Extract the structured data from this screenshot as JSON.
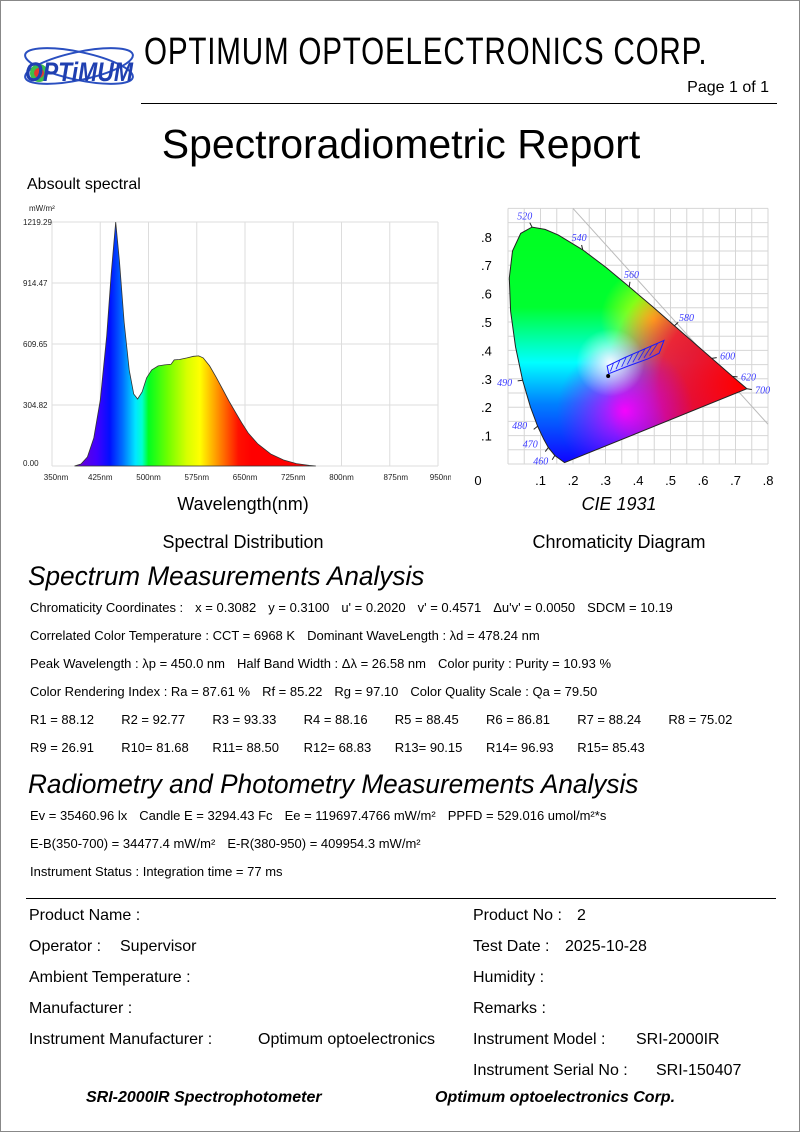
{
  "header": {
    "logo_text": "OPTiMUM",
    "company": "OPTIMUM  OPTOELECTRONICS  CORP.",
    "page": "Page 1 of 1",
    "title": "Spectroradiometric Report"
  },
  "spectrum": {
    "section_label": "Absoult spectral",
    "unit": "mW/m²",
    "xlabel": "Wavelength(nm)",
    "caption": "Spectral Distribution"
  },
  "cie": {
    "title": "CIE 1931",
    "caption": "Chromaticity Diagram"
  },
  "chart_data": [
    {
      "type": "area",
      "title": "Absoult spectral",
      "xlabel": "Wavelength(nm)",
      "ylabel": "mW/m²",
      "x_ticks": [
        "350nm",
        "425nm",
        "500nm",
        "575nm",
        "650nm",
        "725nm",
        "800nm",
        "875nm",
        "950nm"
      ],
      "y_ticks": [
        "0.00",
        "304.82",
        "609.65",
        "914.47",
        "1219.29"
      ],
      "xlim": [
        350,
        950
      ],
      "ylim": [
        0,
        1219.29
      ],
      "grid": true,
      "x": [
        385,
        395,
        405,
        415,
        425,
        435,
        442,
        449,
        455,
        462,
        470,
        477,
        483,
        490,
        497,
        505,
        515,
        525,
        535,
        540,
        548,
        560,
        570,
        578,
        585,
        595,
        605,
        615,
        625,
        635,
        645,
        655,
        670,
        690,
        710,
        730,
        750,
        760
      ],
      "y": [
        0,
        10,
        45,
        140,
        330,
        650,
        960,
        1219,
        1020,
        720,
        480,
        360,
        335,
        370,
        440,
        480,
        500,
        505,
        508,
        530,
        532,
        540,
        548,
        550,
        540,
        500,
        445,
        385,
        325,
        270,
        215,
        165,
        110,
        60,
        30,
        12,
        3,
        0
      ]
    },
    {
      "type": "scatter",
      "title": "CIE 1931",
      "xlim": [
        0,
        0.8
      ],
      "ylim": [
        0,
        0.85
      ],
      "x_ticks": [
        "0",
        ".1",
        ".2",
        ".3",
        ".4",
        ".5",
        ".6",
        ".7",
        ".8"
      ],
      "y_ticks": [
        ".1",
        ".2",
        ".3",
        ".4",
        ".5",
        ".6",
        ".7",
        ".8"
      ],
      "wavelength_labels": [
        {
          "nm": "460",
          "x": 0.144,
          "y": 0.03
        },
        {
          "nm": "470",
          "x": 0.124,
          "y": 0.058
        },
        {
          "nm": "480",
          "x": 0.091,
          "y": 0.133
        },
        {
          "nm": "490",
          "x": 0.045,
          "y": 0.295
        },
        {
          "nm": "520",
          "x": 0.074,
          "y": 0.834
        },
        {
          "nm": "540",
          "x": 0.23,
          "y": 0.754
        },
        {
          "nm": "560",
          "x": 0.373,
          "y": 0.624
        },
        {
          "nm": "580",
          "x": 0.512,
          "y": 0.487
        },
        {
          "nm": "600",
          "x": 0.627,
          "y": 0.372
        },
        {
          "nm": "620",
          "x": 0.691,
          "y": 0.308
        },
        {
          "nm": "700",
          "x": 0.735,
          "y": 0.265
        }
      ],
      "point": {
        "x": 0.3082,
        "y": 0.31
      }
    }
  ],
  "analysis": {
    "title": "Spectrum Measurements Analysis",
    "lines": [
      [
        "Chromaticity Coordinates :",
        "x =  0.3082",
        "y = 0.3100",
        "u' = 0.2020",
        "v' = 0.4571",
        "Δu'v' = 0.0050",
        "SDCM = 10.19"
      ],
      [
        "Correlated Color Temperature : CCT = 6968 K",
        "Dominant WaveLength : λd = 478.24 nm"
      ],
      [
        "Peak Wavelength : λp = 450.0 nm",
        "Half Band Width : Δλ = 26.58 nm",
        "Color purity : Purity = 10.93 %"
      ],
      [
        "Color Rendering Index : Ra = 87.61 %",
        "Rf = 85.22",
        "Rg = 97.10",
        "Color Quality Scale : Qa = 79.50"
      ]
    ],
    "r_row1": [
      "R1 = 88.12",
      "R2 = 92.77",
      "R3 = 93.33",
      "R4 = 88.16",
      "R5 = 88.45",
      "R6 = 86.81",
      "R7 = 88.24",
      "R8 = 75.02"
    ],
    "r_row2": [
      "R9 = 26.91",
      "R10= 81.68",
      "R11= 88.50",
      "R12= 68.83",
      "R13= 90.15",
      "R14= 96.93",
      "R15= 85.43"
    ]
  },
  "radiometry": {
    "title": "Radiometry and Photometry Measurements Analysis",
    "lines": [
      [
        "Ev = 35460.96 lx",
        "Candle E = 3294.43 Fc",
        "Ee = 119697.4766 mW/m²",
        "PPFD = 529.016 umol/m²*s"
      ],
      [
        "E-B(350-700) = 34477.4 mW/m²",
        "E-R(380-950) = 409954.3 mW/m²"
      ],
      [
        "Instrument Status : Integration time = 77 ms"
      ]
    ]
  },
  "info": {
    "product_name_label": "Product Name :",
    "product_no_label": "Product No :",
    "product_no": "2",
    "operator_label": "Operator :",
    "operator": "Supervisor",
    "test_date_label": "Test Date :",
    "test_date": "2025-10-28",
    "ambient_label": "Ambient Temperature :",
    "humidity_label": "Humidity :",
    "manufacturer_label": "Manufacturer :",
    "remarks_label": "Remarks :",
    "inst_manu_label": "Instrument Manufacturer :",
    "inst_manu": "Optimum optoelectronics",
    "inst_model_label": "Instrument Model :",
    "inst_model": "SRI-2000IR",
    "inst_serial_label": "Instrument Serial No :",
    "inst_serial": "SRI-150407"
  },
  "footer": {
    "left": "SRI-2000IR Spectrophotometer",
    "right": "Optimum optoelectronics Corp."
  }
}
